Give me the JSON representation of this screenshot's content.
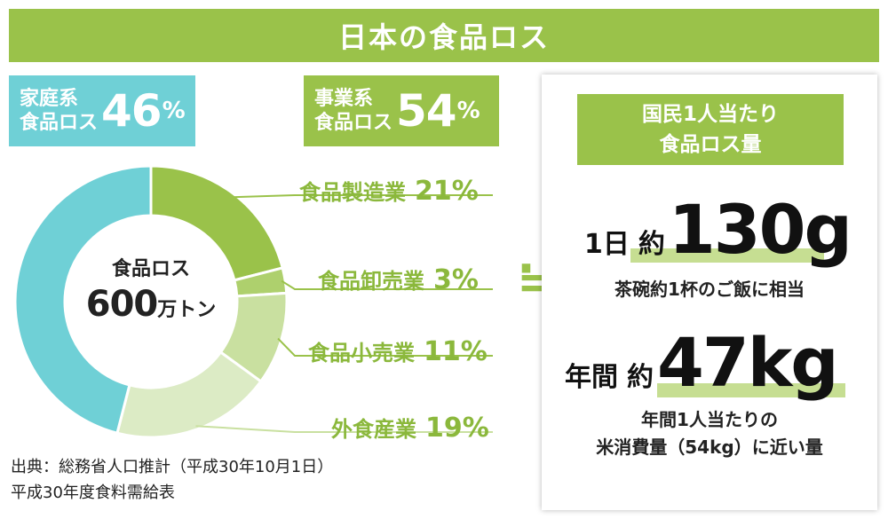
{
  "title": "日本の食品ロス",
  "colors": {
    "green_title": "#9ac24a",
    "household": "#6fd0d6",
    "manufacturing": "#9ac24a",
    "wholesale": "#aed06d",
    "retail": "#c9e0a0",
    "food_service": "#dcebc5"
  },
  "household_badge": {
    "line1": "家庭系",
    "line2": "食品ロス",
    "value": "46",
    "unit": "%"
  },
  "business_badge": {
    "line1": "事業系",
    "line2": "食品ロス",
    "value": "54",
    "unit": "%"
  },
  "donut_center": {
    "line1": "食品ロス",
    "value": "600",
    "unit": "万トン"
  },
  "chart_data": {
    "type": "pie",
    "style": "donut",
    "center_text": "食品ロス 600万トン",
    "slices": [
      {
        "label": "食品製造業",
        "value": 21,
        "display": "21%"
      },
      {
        "label": "食品卸売業",
        "value": 3,
        "display": "3%"
      },
      {
        "label": "食品小売業",
        "value": 11,
        "display": "11%"
      },
      {
        "label": "外食産業",
        "value": 19,
        "display": "19%"
      },
      {
        "label": "家庭系食品ロス",
        "value": 46,
        "display": "46%"
      }
    ]
  },
  "approx_symbol": "≒",
  "panel": {
    "title_line1": "国民1人当たり",
    "title_line2": "食品ロス量",
    "daily": {
      "period": "1日",
      "approx": "約",
      "amount": "130g",
      "note": "茶碗約1杯のご飯に相当"
    },
    "yearly": {
      "period": "年間",
      "approx": "約",
      "amount": "47kg",
      "note_line1": "年間1人当たりの",
      "note_line2": "米消費量（54kg）に近い量"
    }
  },
  "source": {
    "line1": "出典：総務省人口推計（平成30年10月1日）",
    "line2": "平成30年度食料需給表"
  }
}
